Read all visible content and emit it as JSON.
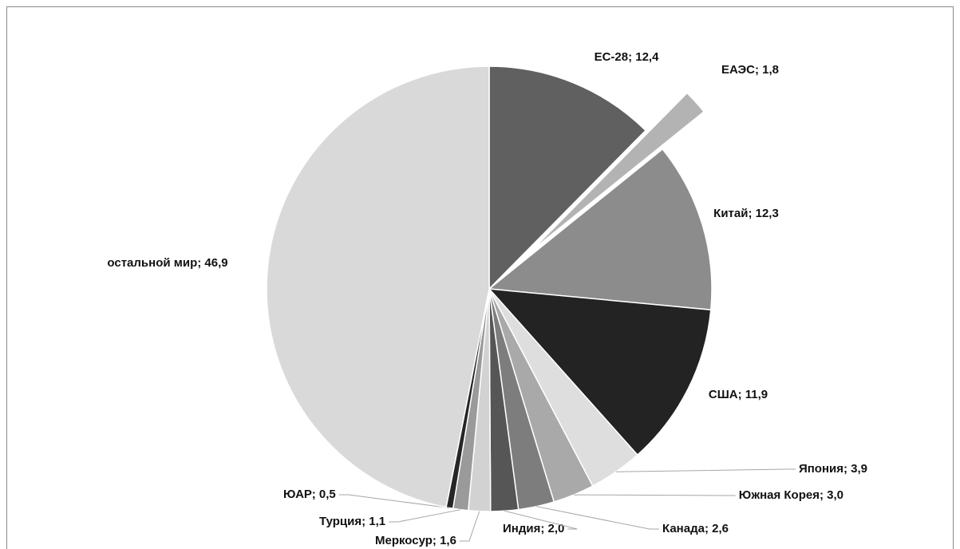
{
  "chart_data": {
    "type": "pie",
    "values": [
      12.4,
      1.8,
      12.3,
      11.9,
      3.9,
      3.0,
      2.6,
      2.0,
      1.6,
      1.1,
      0.5,
      46.9
    ],
    "value_labels": [
      "ЕС-28; 12,4",
      "ЕАЭС; 1,8",
      "Китай; 12,3",
      "США; 11,9",
      "Япония; 3,9",
      "Южная Корея; 3,0",
      "Канада; 2,6",
      "Индия; 2,0",
      "Меркосур; 1,6",
      "Турция; 1,1",
      "ЮАР; 0,5",
      "остальной мир; 46,9"
    ],
    "colors": [
      "#606060",
      "#b3b3b3",
      "#8c8c8c",
      "#232323",
      "#dedede",
      "#a9a9a9",
      "#7d7d7d",
      "#565656",
      "#d2d2d2",
      "#9a9a9a",
      "#262626",
      "#d9d9d9"
    ],
    "exploded": [
      1
    ]
  }
}
